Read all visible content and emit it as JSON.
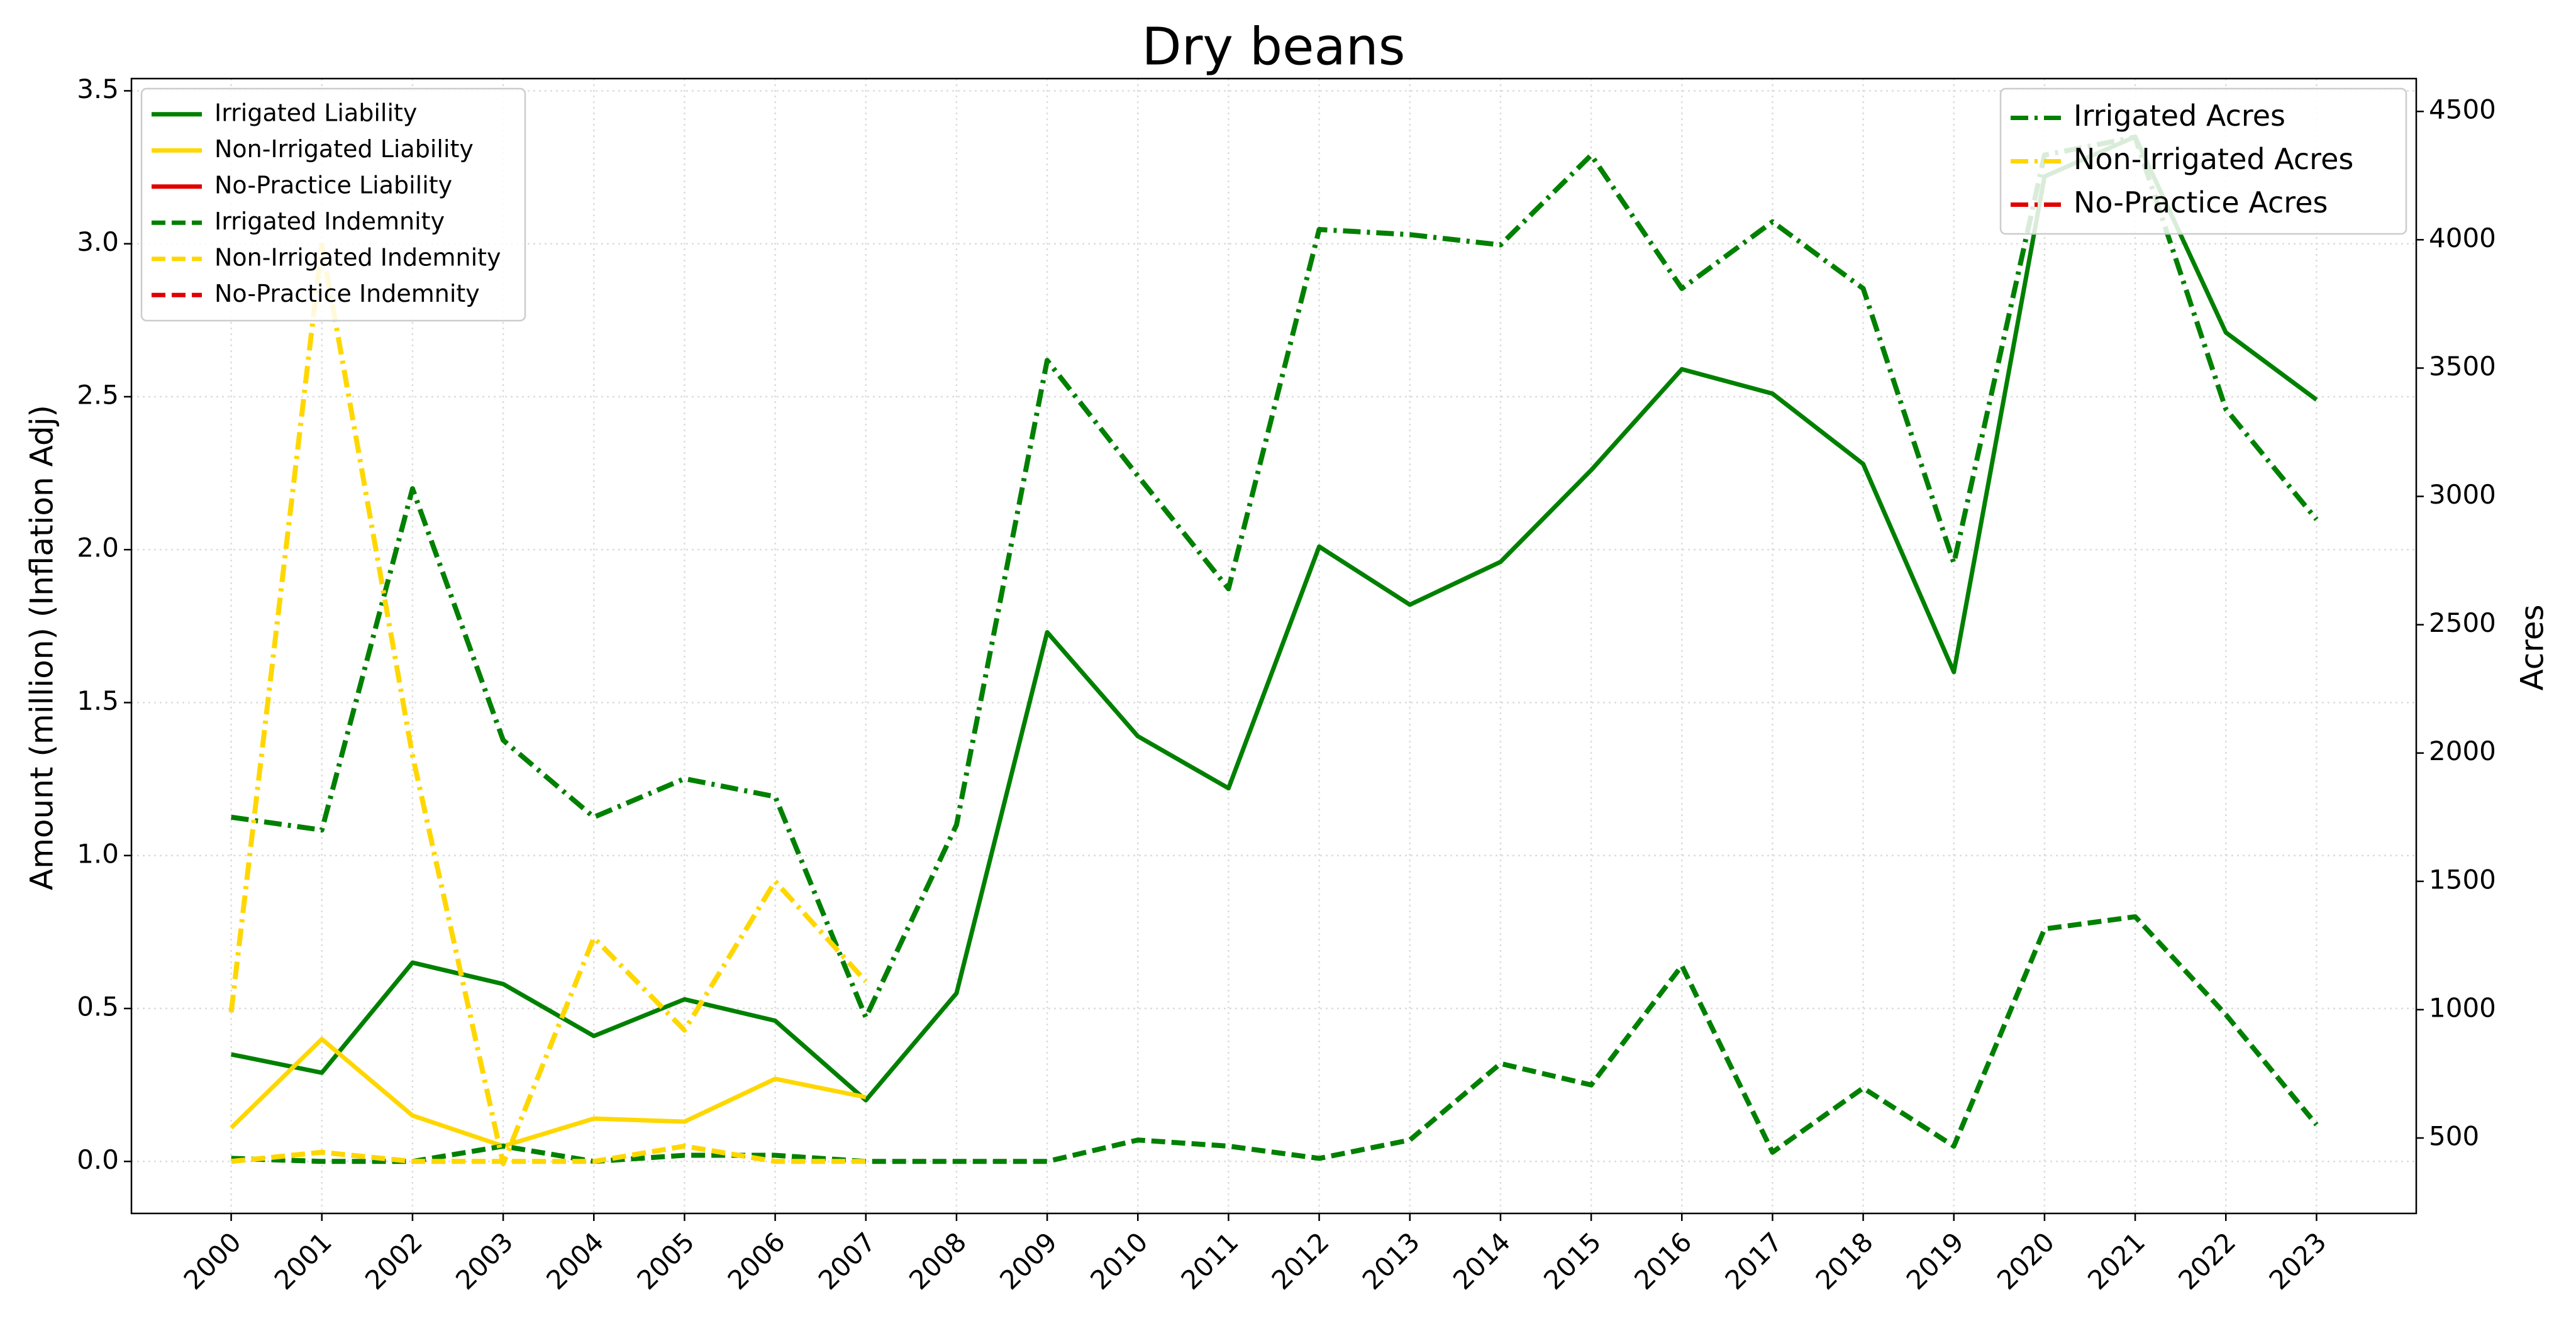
{
  "chart_data": {
    "type": "line",
    "title": "Dry beans",
    "y_label": "Amount (million) (Inflation Adj)",
    "y2_label": "Acres",
    "categories": [
      "2000",
      "2001",
      "2002",
      "2003",
      "2004",
      "2005",
      "2006",
      "2007",
      "2008",
      "2009",
      "2010",
      "2011",
      "2012",
      "2013",
      "2014",
      "2015",
      "2016",
      "2017",
      "2018",
      "2019",
      "2020",
      "2021",
      "2022",
      "2023"
    ],
    "ylim": [
      -0.17,
      3.54
    ],
    "yticks": [
      {
        "value": 0,
        "label": "0.0"
      },
      {
        "value": 0.5,
        "label": "0.5"
      },
      {
        "value": 1,
        "label": "1.0"
      },
      {
        "value": 1.5,
        "label": "1.5"
      },
      {
        "value": 2,
        "label": "2.0"
      },
      {
        "value": 2.5,
        "label": "2.5"
      },
      {
        "value": 3,
        "label": "3.0"
      },
      {
        "value": 3.5,
        "label": "3.5"
      }
    ],
    "y2lim": [
      206,
      4628
    ],
    "y2ticks": [
      500,
      1000,
      1500,
      2000,
      2500,
      3000,
      3500,
      4000,
      4500
    ],
    "grid": true,
    "legend_loc": "upper left",
    "legend2_loc": "upper right",
    "series": [
      {
        "name": "Irrigated Liability",
        "color": "#008000",
        "dash": "solid",
        "values": [
          0.35,
          0.29,
          0.65,
          0.58,
          0.41,
          0.53,
          0.46,
          0.2,
          0.55,
          1.73,
          1.39,
          1.22,
          2.01,
          1.82,
          1.96,
          2.26,
          2.59,
          2.51,
          2.28,
          1.6,
          3.22,
          3.35,
          2.71,
          2.49
        ]
      },
      {
        "name": "Non-Irrigated Liability",
        "color": "#ffd700",
        "dash": "solid",
        "values": [
          0.11,
          0.4,
          0.15,
          0.05,
          0.14,
          0.13,
          0.27,
          0.21,
          null,
          null,
          null,
          null,
          null,
          null,
          null,
          null,
          null,
          null,
          null,
          null,
          null,
          null,
          null,
          null
        ]
      },
      {
        "name": "No-Practice Liability",
        "color": "#e00000",
        "dash": "solid",
        "values": [
          null,
          null,
          null,
          null,
          null,
          null,
          null,
          null,
          null,
          null,
          null,
          null,
          null,
          null,
          null,
          null,
          null,
          null,
          null,
          null,
          null,
          null,
          null,
          null
        ]
      },
      {
        "name": "Irrigated Indemnity",
        "color": "#008000",
        "dash": "dashed",
        "values": [
          0.01,
          0,
          0,
          0.05,
          0,
          0.02,
          0.02,
          0,
          0,
          0,
          0.07,
          0.05,
          0.01,
          0.07,
          0.32,
          0.25,
          0.64,
          0.03,
          0.24,
          0.05,
          0.76,
          0.8,
          0.48,
          0.12
        ]
      },
      {
        "name": "Non-Irrigated Indemnity",
        "color": "#ffd700",
        "dash": "dashed",
        "values": [
          0,
          0.03,
          0,
          0,
          0,
          0.05,
          0,
          0,
          null,
          null,
          null,
          null,
          null,
          null,
          null,
          null,
          null,
          null,
          null,
          null,
          null,
          null,
          null,
          null
        ]
      },
      {
        "name": "No-Practice Indemnity",
        "color": "#e00000",
        "dash": "dashed",
        "values": [
          null,
          null,
          null,
          null,
          null,
          null,
          null,
          null,
          null,
          null,
          null,
          null,
          null,
          null,
          null,
          null,
          null,
          null,
          null,
          null,
          null,
          null,
          null,
          null
        ]
      },
      {
        "name": "Irrigated Acres",
        "color": "#008000",
        "dash": "dashdot",
        "axis": "y2",
        "values": [
          1750,
          1700,
          3030,
          2050,
          1750,
          1900,
          1830,
          970,
          1720,
          3530,
          3080,
          2640,
          4040,
          4020,
          3980,
          4330,
          3810,
          4070,
          3810,
          2740,
          4330,
          4400,
          3340,
          2910
        ]
      },
      {
        "name": "Non-Irrigated Acres",
        "color": "#ffd700",
        "dash": "dashdot",
        "axis": "y2",
        "values": [
          990,
          3980,
          1990,
          400,
          1280,
          920,
          1500,
          1110,
          null,
          null,
          null,
          null,
          null,
          null,
          null,
          null,
          null,
          null,
          null,
          null,
          null,
          null,
          null,
          null
        ]
      },
      {
        "name": "No-Practice Acres",
        "color": "#e00000",
        "dash": "dashdot",
        "axis": "y2",
        "values": [
          null,
          null,
          null,
          null,
          null,
          null,
          null,
          null,
          null,
          null,
          null,
          null,
          null,
          null,
          null,
          null,
          null,
          null,
          null,
          null,
          null,
          null,
          null,
          null
        ]
      }
    ]
  }
}
